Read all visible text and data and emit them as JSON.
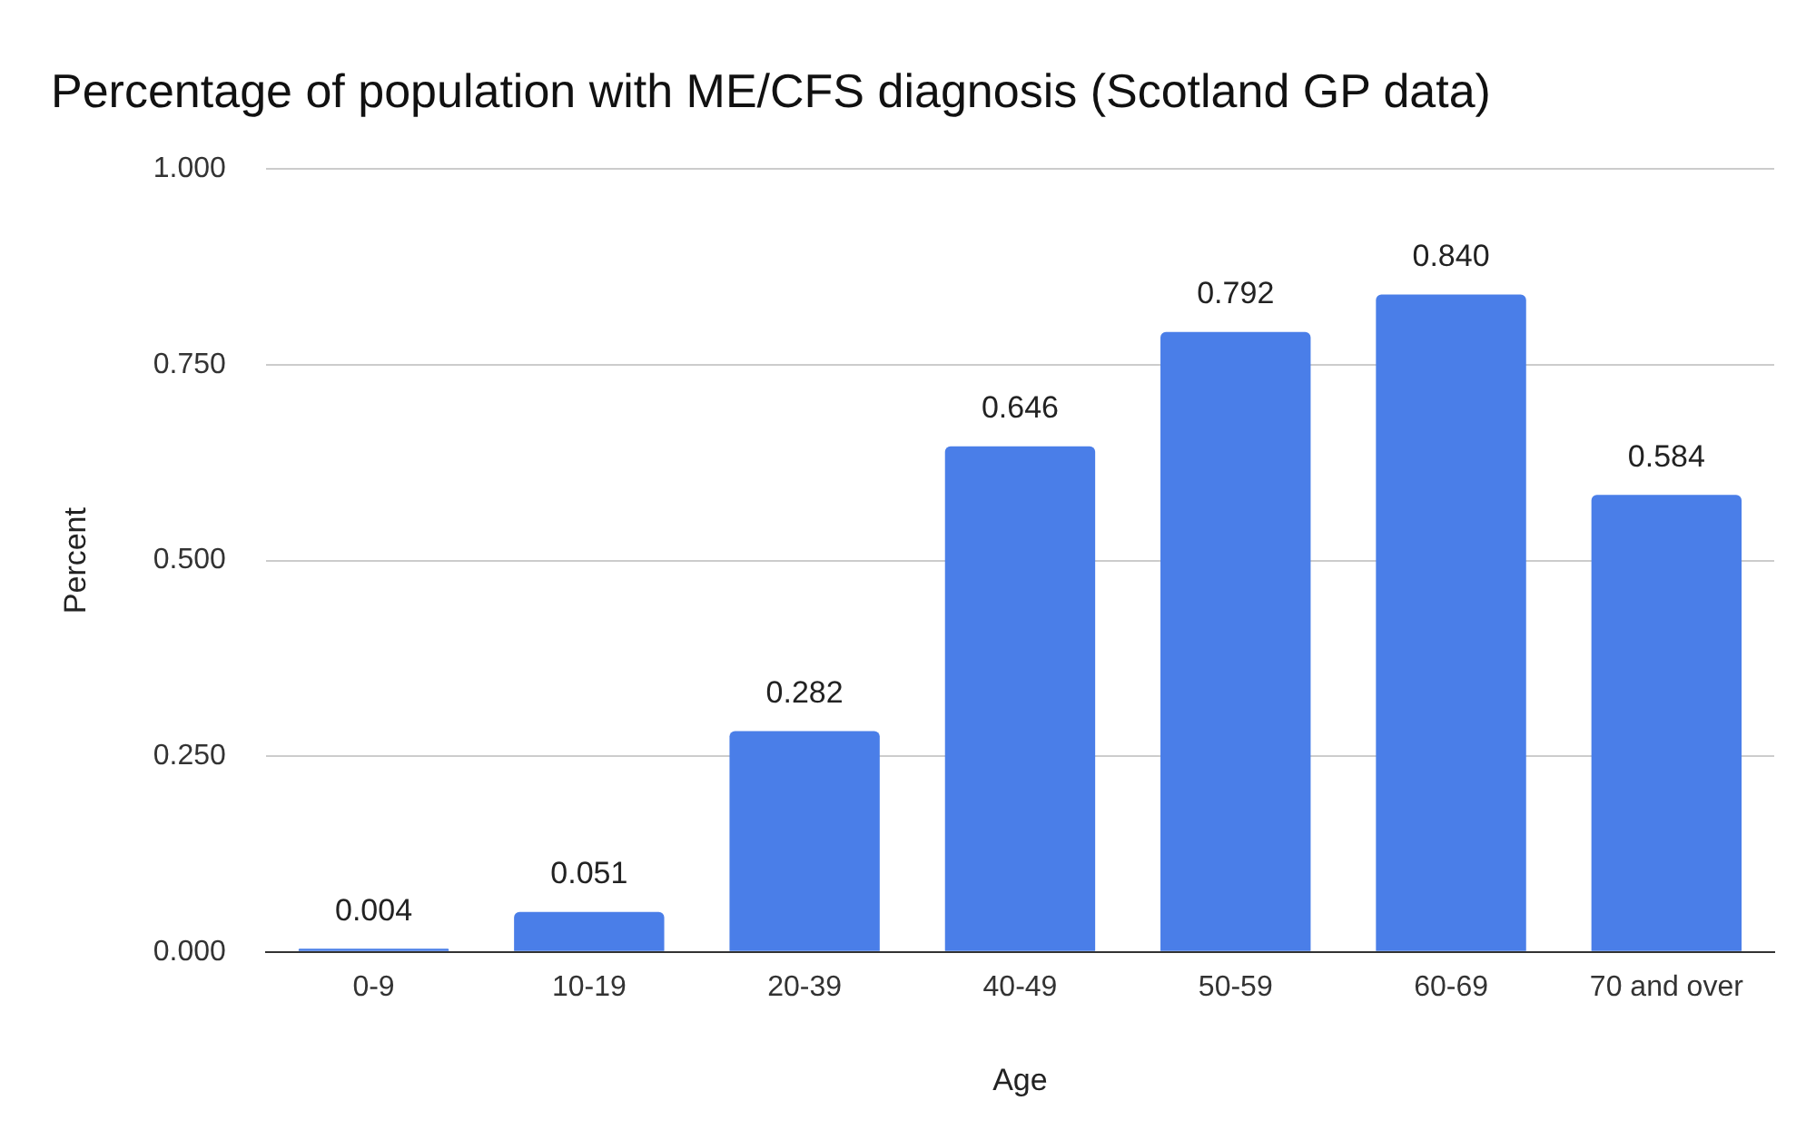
{
  "chart_data": {
    "type": "bar",
    "title": "Percentage of population with ME/CFS diagnosis (Scotland GP data)",
    "xlabel": "Age",
    "ylabel": "Percent",
    "categories": [
      "0-9",
      "10-19",
      "20-39",
      "40-49",
      "50-59",
      "60-69",
      "70 and over"
    ],
    "values": [
      0.004,
      0.051,
      0.282,
      0.646,
      0.792,
      0.84,
      0.584
    ],
    "value_labels": [
      "0.004",
      "0.051",
      "0.282",
      "0.646",
      "0.792",
      "0.840",
      "0.584"
    ],
    "color": "#4a7ee8",
    "ylim": [
      0,
      1
    ],
    "yticks": [
      {
        "value": 0,
        "label": "0.000"
      },
      {
        "value": 0.25,
        "label": "0.250"
      },
      {
        "value": 0.5,
        "label": "0.500"
      },
      {
        "value": 0.75,
        "label": "0.750"
      },
      {
        "value": 1,
        "label": "1.000"
      }
    ],
    "grid": "y",
    "legend": false
  }
}
